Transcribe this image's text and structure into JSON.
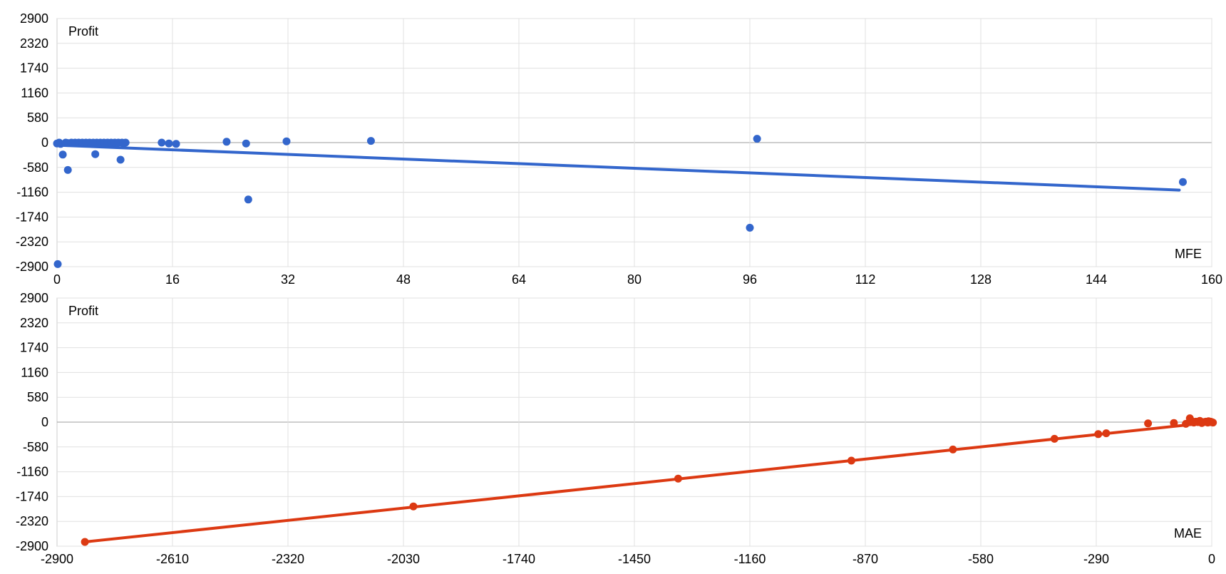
{
  "chart_data": [
    {
      "type": "scatter",
      "ylabel": "Profit",
      "xlabel": "MFE",
      "xlim": [
        0,
        160
      ],
      "ylim": [
        -2900,
        2900
      ],
      "x_ticks": [
        "0",
        "16",
        "32",
        "48",
        "64",
        "80",
        "96",
        "112",
        "128",
        "144",
        "160"
      ],
      "y_ticks": [
        "2900",
        "2320",
        "1740",
        "1160",
        "580",
        "0",
        "-580",
        "-1160",
        "-1740",
        "-2320",
        "-2900"
      ],
      "grid": true,
      "color": "#3366cc",
      "points": [
        [
          0,
          -20
        ],
        [
          0.3,
          0
        ],
        [
          0.5,
          -30
        ],
        [
          0.8,
          -280
        ],
        [
          1.2,
          0
        ],
        [
          1.5,
          -10
        ],
        [
          2,
          0
        ],
        [
          2.5,
          0
        ],
        [
          1.5,
          -640
        ],
        [
          3,
          0
        ],
        [
          3.5,
          0
        ],
        [
          4,
          0
        ],
        [
          4.5,
          0
        ],
        [
          5,
          0
        ],
        [
          5.5,
          0
        ],
        [
          6,
          0
        ],
        [
          5.3,
          -270
        ],
        [
          6.5,
          0
        ],
        [
          7,
          0
        ],
        [
          7.5,
          0
        ],
        [
          8,
          0
        ],
        [
          8.5,
          0
        ],
        [
          9,
          0
        ],
        [
          9.5,
          0
        ],
        [
          8.8,
          -400
        ],
        [
          9.2,
          -10
        ],
        [
          14.5,
          0
        ],
        [
          15.5,
          -20
        ],
        [
          16.5,
          -30
        ],
        [
          23.5,
          20
        ],
        [
          26.2,
          -20
        ],
        [
          26.5,
          -1330
        ],
        [
          31.8,
          30
        ],
        [
          43.5,
          40
        ],
        [
          97,
          90
        ],
        [
          96,
          -1990
        ],
        [
          156,
          -920
        ],
        [
          0.1,
          -2840
        ]
      ],
      "trendline": {
        "x": [
          0,
          155.5
        ],
        "y": [
          -60,
          -1110
        ]
      }
    },
    {
      "type": "scatter",
      "ylabel": "Profit",
      "xlabel": "MAE",
      "xlim": [
        -2900,
        0
      ],
      "ylim": [
        -2900,
        2900
      ],
      "x_ticks": [
        "-2900",
        "-2610",
        "-2320",
        "-2030",
        "-1740",
        "-1450",
        "-1160",
        "-870",
        "-580",
        "-290",
        "0"
      ],
      "y_ticks": [
        "2900",
        "2320",
        "1740",
        "1160",
        "580",
        "0",
        "-580",
        "-1160",
        "-1740",
        "-2320",
        "-2900"
      ],
      "grid": true,
      "color": "#dc3912",
      "points": [
        [
          -2830,
          -2800
        ],
        [
          -2005,
          -1970
        ],
        [
          -1340,
          -1320
        ],
        [
          -905,
          -900
        ],
        [
          -650,
          -640
        ],
        [
          -395,
          -390
        ],
        [
          -285,
          -280
        ],
        [
          -265,
          -260
        ],
        [
          -160,
          -30
        ],
        [
          -95,
          -20
        ],
        [
          -65,
          -40
        ],
        [
          -55,
          90
        ],
        [
          -50,
          20
        ],
        [
          -45,
          -10
        ],
        [
          -40,
          10
        ],
        [
          -35,
          0
        ],
        [
          -30,
          30
        ],
        [
          -25,
          -20
        ],
        [
          -20,
          0
        ],
        [
          -15,
          10
        ],
        [
          -10,
          -10
        ],
        [
          -8,
          20
        ],
        [
          -5,
          0
        ],
        [
          -3,
          10
        ],
        [
          0,
          0
        ],
        [
          3,
          -10
        ]
      ],
      "trendline": {
        "x": [
          -2830,
          -5
        ],
        "y": [
          -2800,
          -10
        ]
      }
    }
  ]
}
